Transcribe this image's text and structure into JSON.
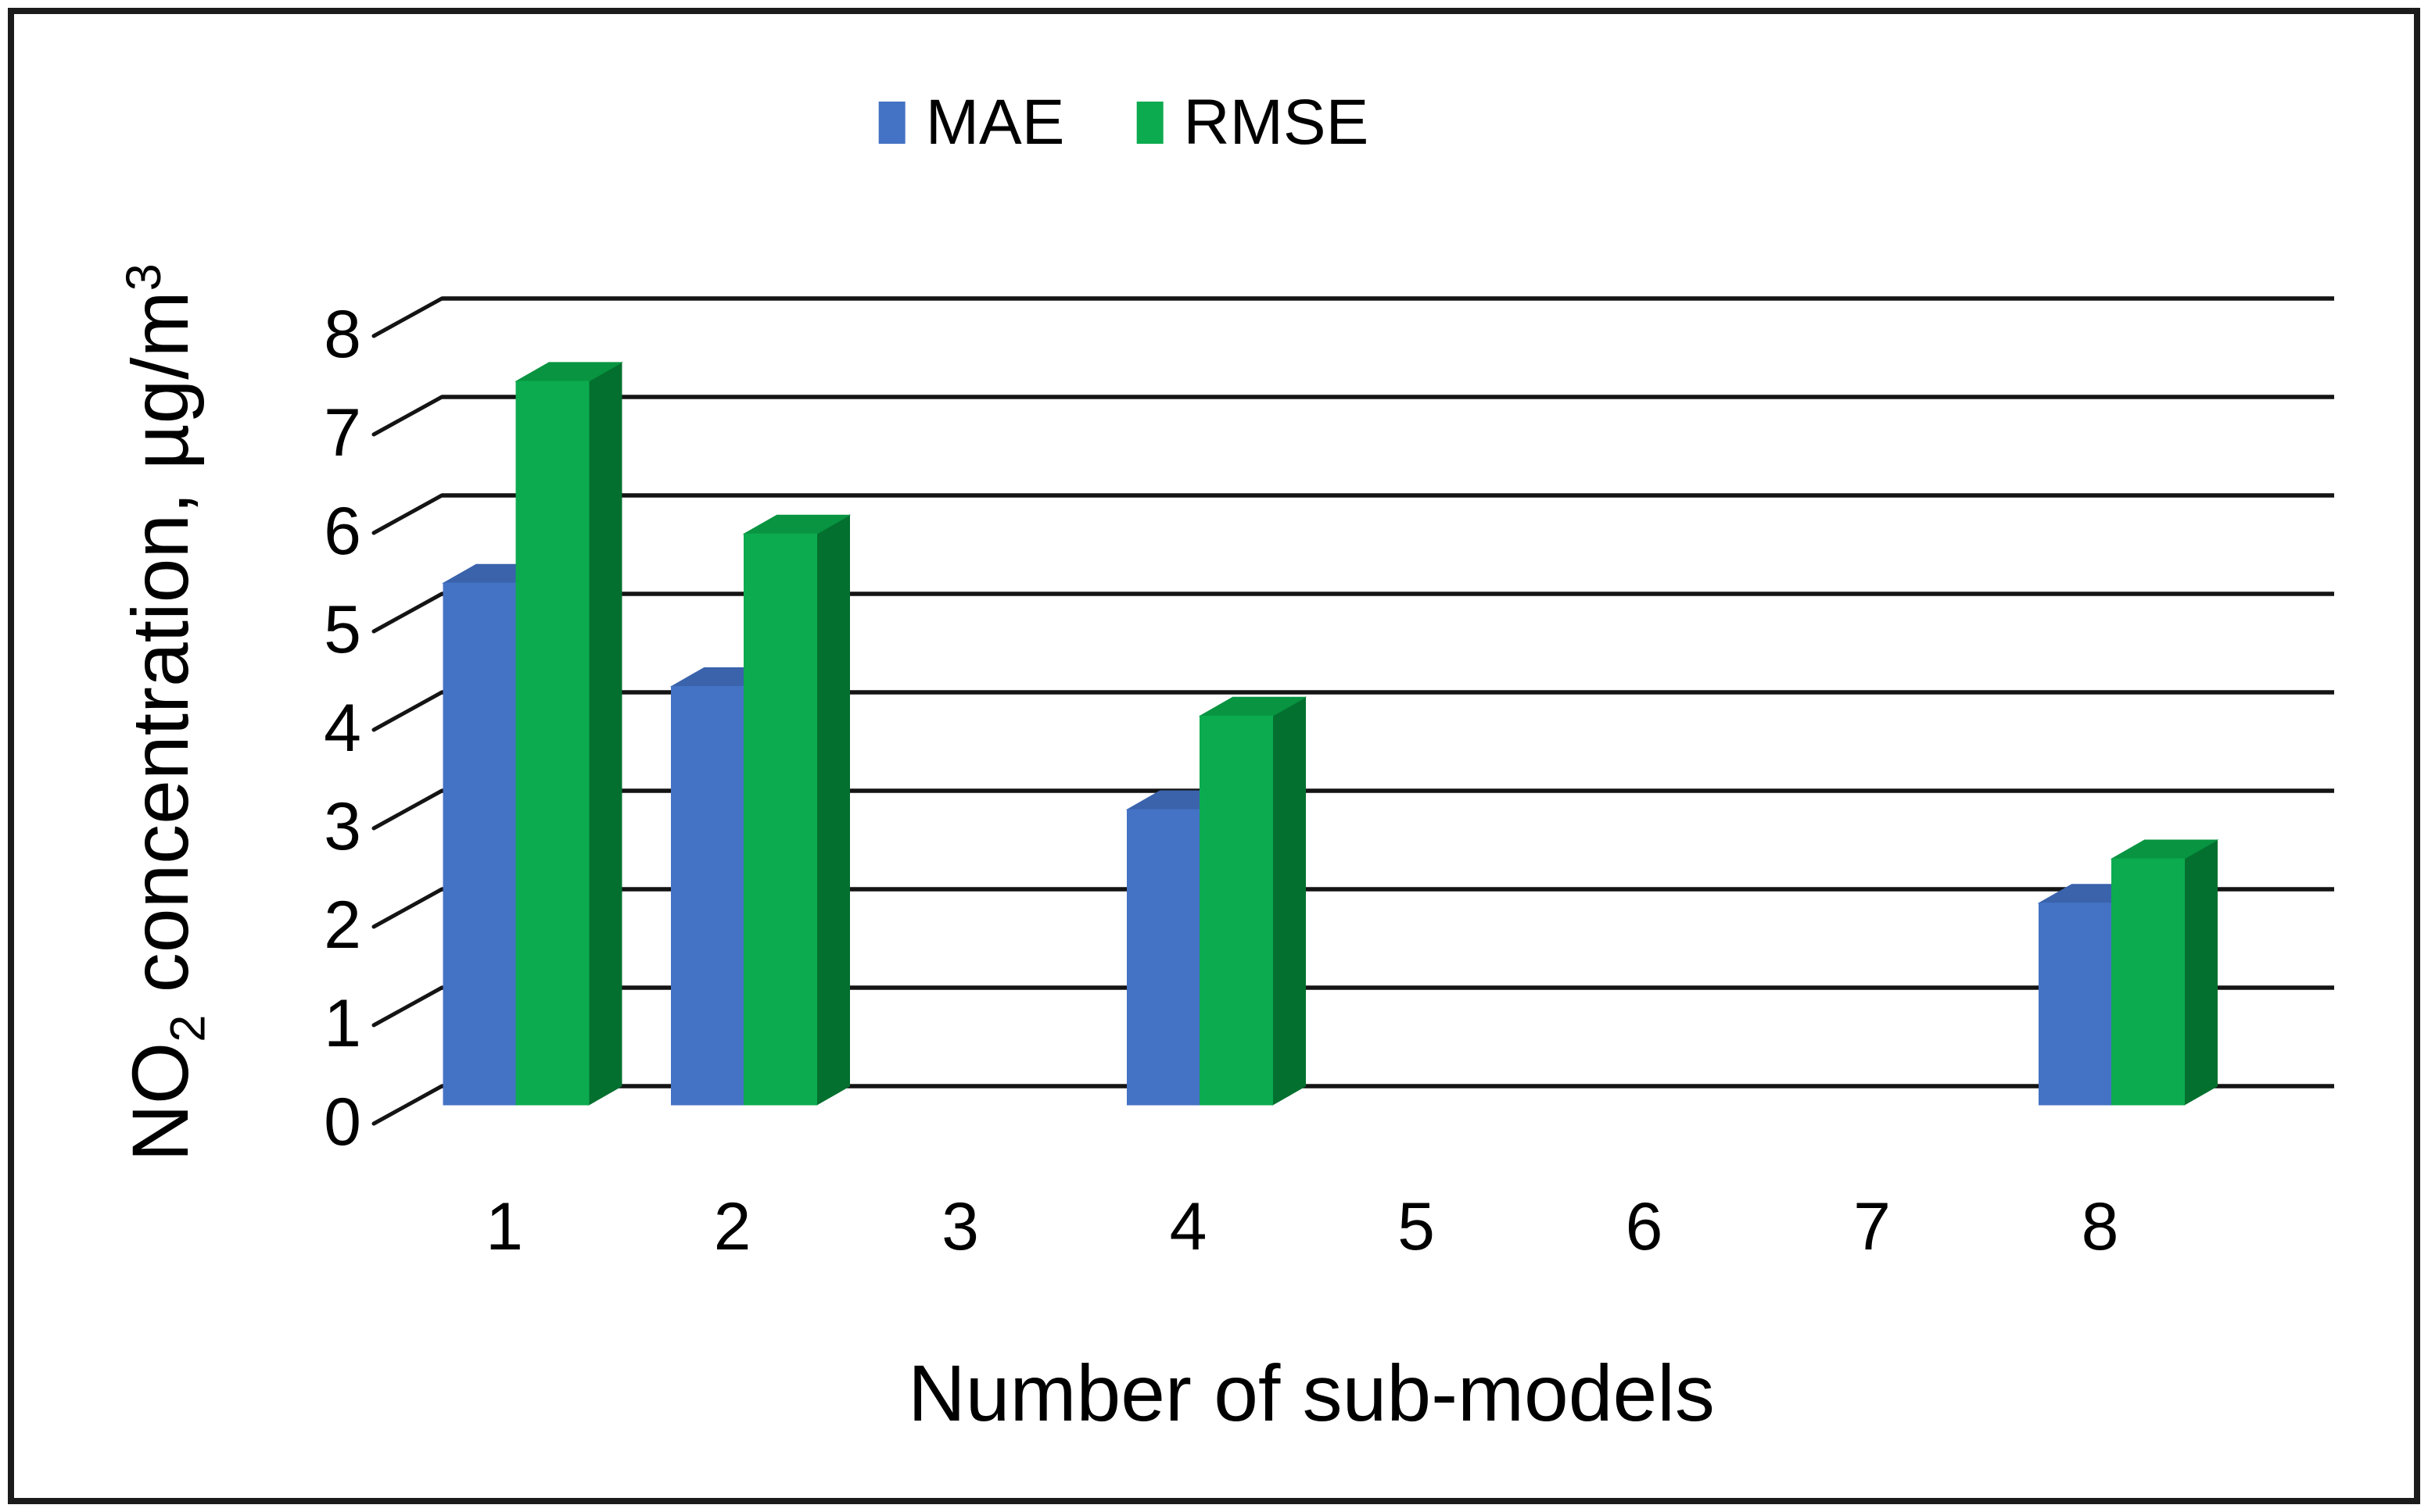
{
  "figure": {
    "y_label_parts": {
      "pre": "NO",
      "sub": "2",
      "mid": " concentration, µg/m",
      "sup": "3"
    },
    "frame_color": "#1b1b1b",
    "gridline_color": "#141414",
    "text_color": "#000000"
  },
  "chart_data": {
    "type": "bar",
    "style": "3d-column",
    "title": "",
    "xlabel": "Number of sub-models",
    "ylabel": "NO₂ concentration, µg/m³",
    "categories": [
      "1",
      "2",
      "3",
      "4",
      "5",
      "6",
      "7",
      "8"
    ],
    "series": [
      {
        "name": "MAE",
        "color": "#4472C4",
        "color_top": "#3A63AC",
        "color_side": "#2F5597",
        "values": [
          5.3,
          4.25,
          null,
          3.0,
          null,
          null,
          null,
          2.05
        ]
      },
      {
        "name": "RMSE",
        "color": "#0CAB4F",
        "color_top": "#089441",
        "color_side": "#04702F",
        "values": [
          7.35,
          5.8,
          null,
          3.95,
          null,
          null,
          null,
          2.5
        ]
      }
    ],
    "ylim": [
      0,
      8
    ],
    "y_ticks": [
      0,
      1,
      2,
      3,
      4,
      5,
      6,
      7,
      8
    ],
    "grid": "horizontal",
    "legend_position": "top-center"
  }
}
